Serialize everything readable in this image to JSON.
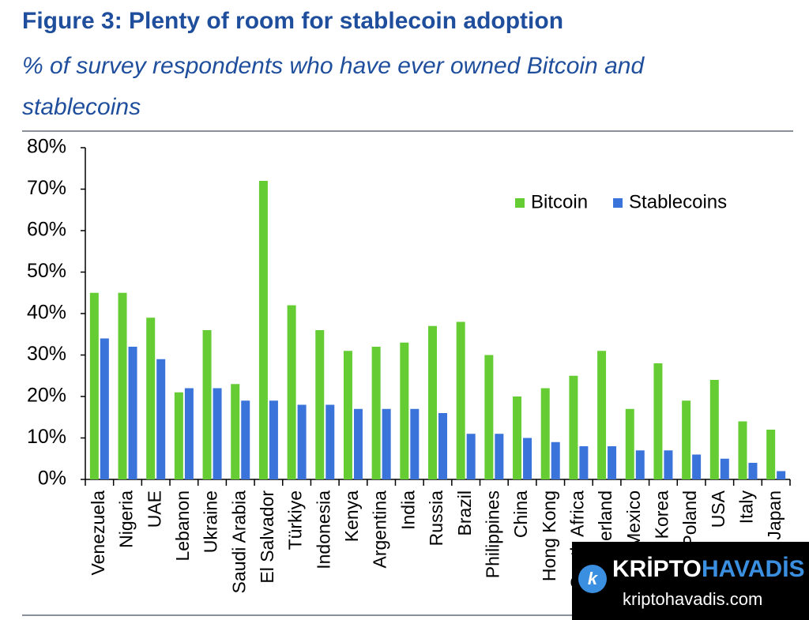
{
  "chart_data": {
    "type": "bar",
    "title": "Figure 3: Plenty of room for stablecoin adoption",
    "subtitle": "% of survey respondents who have ever owned Bitcoin and stablecoins",
    "categories": [
      "Venezuela",
      "Nigeria",
      "UAE",
      "Lebanon",
      "Ukraine",
      "Saudi Arabia",
      "El Salvador",
      "Türkiye",
      "Indonesia",
      "Kenya",
      "Argentina",
      "India",
      "Russia",
      "Brazil",
      "Philippines",
      "China",
      "Hong Kong",
      "South Africa",
      "Switzerland",
      "Mexico",
      "Korea",
      "Poland",
      "USA",
      "Italy",
      "Japan"
    ],
    "series": [
      {
        "name": "Bitcoin",
        "color": "#66cc33",
        "values": [
          45,
          45,
          39,
          21,
          36,
          23,
          72,
          42,
          36,
          31,
          32,
          33,
          37,
          38,
          30,
          20,
          22,
          25,
          31,
          17,
          28,
          19,
          24,
          14,
          12
        ]
      },
      {
        "name": "Stablecoins",
        "color": "#3a73d9",
        "values": [
          34,
          32,
          29,
          22,
          22,
          19,
          19,
          18,
          18,
          17,
          17,
          17,
          16,
          11,
          11,
          10,
          9,
          8,
          8,
          7,
          7,
          6,
          5,
          4,
          2
        ]
      }
    ],
    "ylim": [
      0,
      80
    ],
    "yticks": [
      {
        "value": 0,
        "label": "0%"
      },
      {
        "value": 10,
        "label": "10%"
      },
      {
        "value": 20,
        "label": "20%"
      },
      {
        "value": 30,
        "label": "30%"
      },
      {
        "value": 40,
        "label": "40%"
      },
      {
        "value": 50,
        "label": "50%"
      },
      {
        "value": 60,
        "label": "60%"
      },
      {
        "value": 70,
        "label": "70%"
      },
      {
        "value": 80,
        "label": "80%"
      }
    ],
    "grid": false,
    "legend": "top-right"
  },
  "watermark": {
    "brand_left": "KRİPTO",
    "brand_right": "HAVADİS",
    "url": "kriptohavadis.com"
  }
}
